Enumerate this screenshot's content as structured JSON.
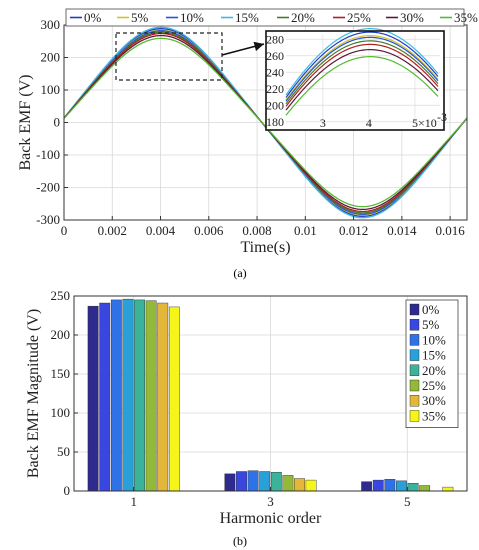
{
  "chart_data": [
    {
      "type": "line",
      "panel_label": "(a)",
      "xlabel": "Time(s)",
      "ylabel": "Back EMF (V)",
      "xlim": [
        0,
        0.0167
      ],
      "ylim": [
        -300,
        300
      ],
      "grid": true,
      "legend_placement": "top",
      "x_ticks": [
        "0",
        "0.002",
        "0.004",
        "0.006",
        "0.008",
        "0.01",
        "0.012",
        "0.014",
        "0.016"
      ],
      "y_ticks": [
        "300",
        "200",
        "100",
        "0",
        "-100",
        "-200",
        "-300"
      ],
      "period": 0.0167,
      "phase_offset": 0.00015,
      "series": [
        {
          "name": "0%",
          "color": "#1f3fbf",
          "peak": 272
        },
        {
          "name": "5%",
          "color": "#d4c030",
          "peak": 268
        },
        {
          "name": "10%",
          "color": "#2255dd",
          "peak": 266
        },
        {
          "name": "15%",
          "color": "#3fb8e8",
          "peak": 276
        },
        {
          "name": "20%",
          "color": "#4a7a2a",
          "peak": 262
        },
        {
          "name": "25%",
          "color": "#b02020",
          "peak": 258
        },
        {
          "name": "30%",
          "color": "#5a1a3a",
          "peak": 252
        },
        {
          "name": "35%",
          "color": "#55bb33",
          "peak": 244
        }
      ],
      "inset": {
        "xlim": [
          0.0022,
          0.0055
        ],
        "ylim": [
          170,
          290
        ],
        "x_ticks": [
          "3",
          "4",
          "5"
        ],
        "x_tick_values": [
          0.003,
          0.004,
          0.005
        ],
        "x_exponent": "×10",
        "x_exponent_power": "-3",
        "y_ticks": [
          "280",
          "260",
          "240",
          "220",
          "200",
          "180"
        ]
      }
    },
    {
      "type": "bar",
      "panel_label": "(b)",
      "xlabel": "Harmonic order",
      "ylabel": "Back EMF Magnitude (V)",
      "ylim": [
        0,
        250
      ],
      "categories": [
        "1",
        "3",
        "5"
      ],
      "y_ticks": [
        "250",
        "200",
        "150",
        "100",
        "50",
        "0"
      ],
      "legend_placement": "top-right",
      "series": [
        {
          "name": "0%",
          "color": "#2e2a8e",
          "values": [
            237,
            22,
            12
          ]
        },
        {
          "name": "5%",
          "color": "#3a46e0",
          "values": [
            241,
            25,
            14
          ]
        },
        {
          "name": "10%",
          "color": "#2f72e8",
          "values": [
            245,
            26,
            15
          ]
        },
        {
          "name": "15%",
          "color": "#2aa0d8",
          "values": [
            246,
            25,
            13
          ]
        },
        {
          "name": "20%",
          "color": "#3ab39a",
          "values": [
            245,
            24,
            10
          ]
        },
        {
          "name": "25%",
          "color": "#93b83a",
          "values": [
            244,
            20,
            7
          ]
        },
        {
          "name": "30%",
          "color": "#e3b83a",
          "values": [
            241,
            16,
            0
          ]
        },
        {
          "name": "35%",
          "color": "#f5f51a",
          "values": [
            236,
            14,
            5
          ]
        }
      ]
    }
  ]
}
